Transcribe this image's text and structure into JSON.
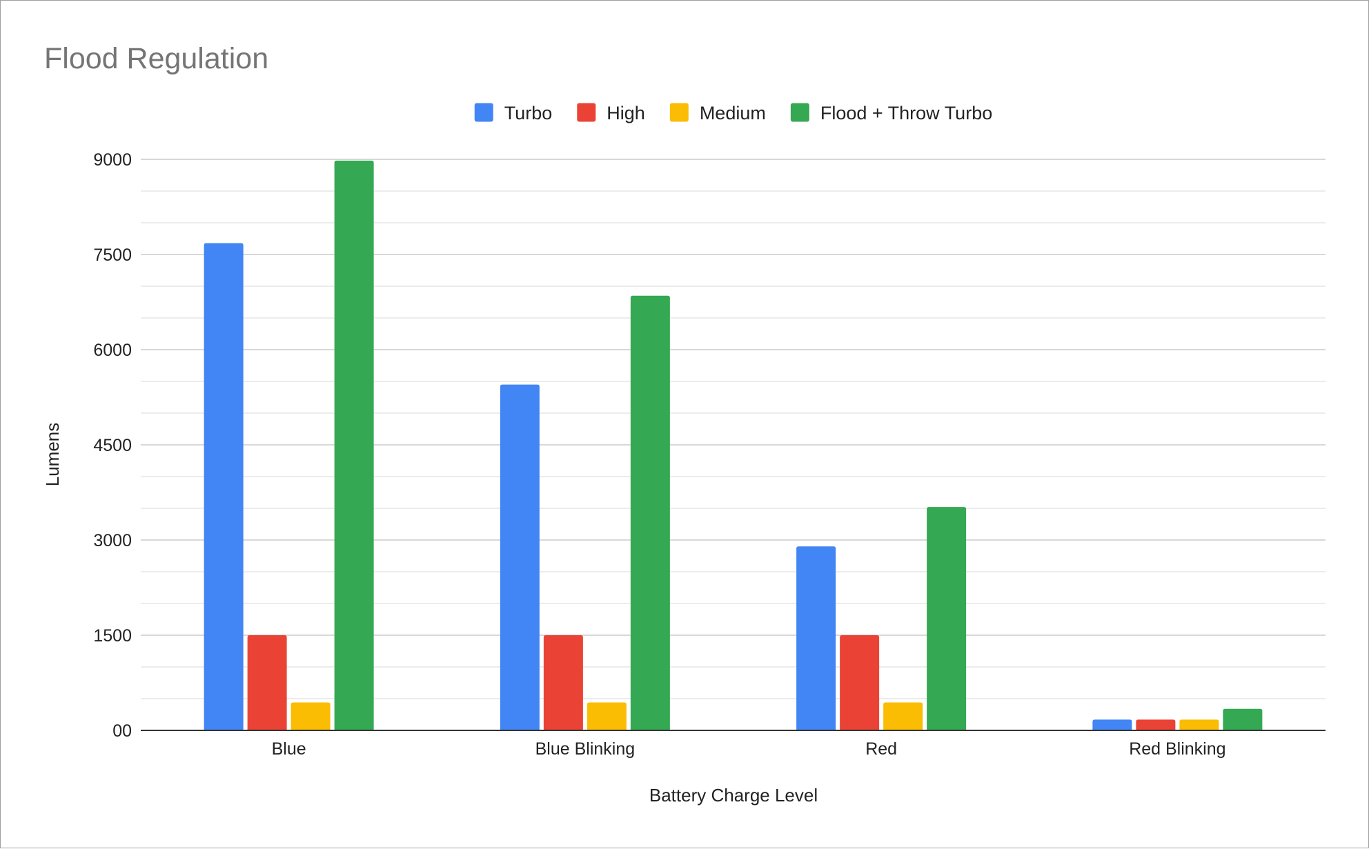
{
  "chart_data": {
    "type": "bar",
    "title": "Flood Regulation",
    "xlabel": "Battery Charge Level",
    "ylabel": "Lumens",
    "categories": [
      "Blue",
      "Blue Blinking",
      "Red",
      "Red Blinking"
    ],
    "series": [
      {
        "name": "Turbo",
        "color": "#4285f4",
        "values": [
          7680,
          5450,
          2900,
          170
        ]
      },
      {
        "name": "High",
        "color": "#ea4335",
        "values": [
          1500,
          1500,
          1500,
          170
        ]
      },
      {
        "name": "Medium",
        "color": "#fbbc04",
        "values": [
          440,
          440,
          440,
          170
        ]
      },
      {
        "name": "Flood + Throw Turbo",
        "color": "#34a853",
        "values": [
          8980,
          6850,
          3520,
          340
        ]
      }
    ],
    "yticks": [
      0,
      1500,
      3000,
      4500,
      6000,
      7500,
      9000
    ],
    "ytick_labels": [
      "00",
      "1500",
      "3000",
      "4500",
      "6000",
      "7500",
      "9000"
    ],
    "ylim": [
      0,
      9000
    ],
    "grid": true,
    "legend_position": "top-center"
  }
}
